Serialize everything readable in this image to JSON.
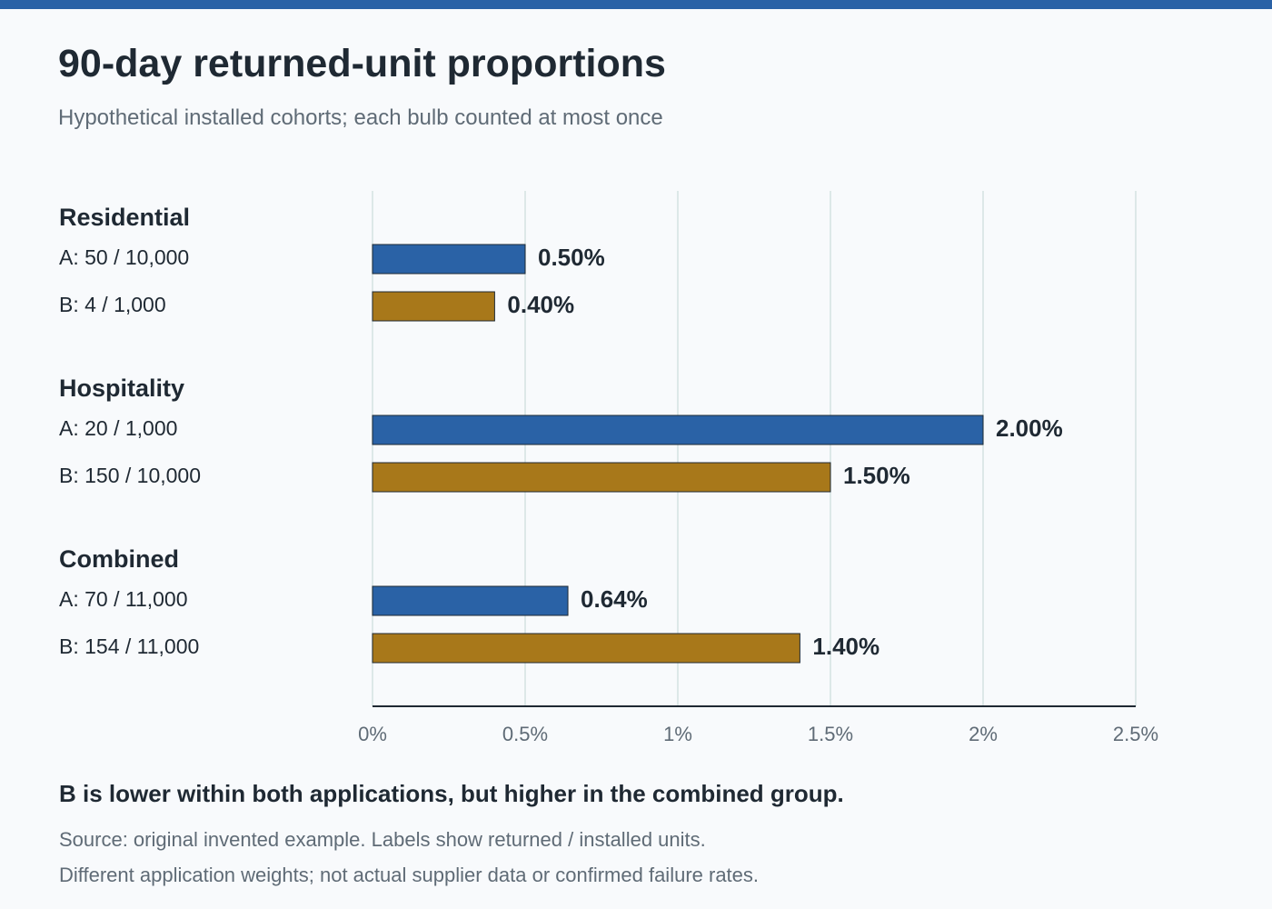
{
  "header": {
    "title": "90-day returned-unit proportions",
    "subtitle": "Hypothetical installed cohorts; each bulb counted at most once"
  },
  "colors": {
    "accent_bar": "#2a62a6",
    "supplier_a": "#2a62a6",
    "supplier_b": "#a8781a",
    "text_dark": "#1f2933",
    "text_muted": "#5f6b76",
    "grid": "#d4e2e2"
  },
  "chart_data": {
    "type": "bar",
    "orientation": "horizontal",
    "title": "90-day returned-unit proportions",
    "subtitle": "Hypothetical installed cohorts; each bulb counted at most once",
    "xlim": [
      0,
      2.5
    ],
    "x_ticks": [
      {
        "value": 0,
        "label": "0%"
      },
      {
        "value": 0.5,
        "label": "0.5%"
      },
      {
        "value": 1,
        "label": "1%"
      },
      {
        "value": 1.5,
        "label": "1.5%"
      },
      {
        "value": 2,
        "label": "2%"
      },
      {
        "value": 2.5,
        "label": "2.5%"
      }
    ],
    "grid": true,
    "groups": [
      {
        "name": "Residential",
        "bars": [
          {
            "series": "A",
            "label": "A: 50 / 10,000",
            "value": 0.5,
            "value_label": "0.50%"
          },
          {
            "series": "B",
            "label": "B: 4 / 1,000",
            "value": 0.4,
            "value_label": "0.40%"
          }
        ]
      },
      {
        "name": "Hospitality",
        "bars": [
          {
            "series": "A",
            "label": "A: 20 / 1,000",
            "value": 2.0,
            "value_label": "2.00%"
          },
          {
            "series": "B",
            "label": "B: 150 / 10,000",
            "value": 1.5,
            "value_label": "1.50%"
          }
        ]
      },
      {
        "name": "Combined",
        "bars": [
          {
            "series": "A",
            "label": "A: 70 / 11,000",
            "value": 0.64,
            "value_label": "0.64%"
          },
          {
            "series": "B",
            "label": "B: 154 / 11,000",
            "value": 1.4,
            "value_label": "1.40%"
          }
        ]
      }
    ]
  },
  "footer": {
    "conclusion": "B is lower within both applications, but higher in the combined group.",
    "note_1": "Source: original invented example. Labels show returned / installed units.",
    "note_2": "Different application weights; not actual supplier data or confirmed failure rates."
  }
}
